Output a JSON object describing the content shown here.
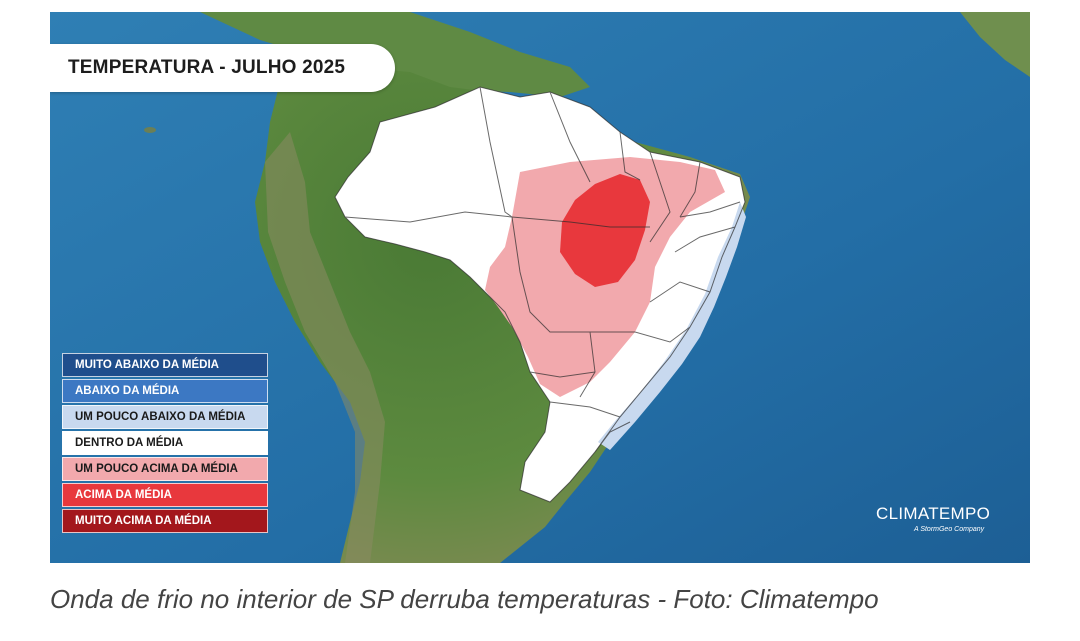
{
  "map": {
    "title": "TEMPERATURA - JULHO 2025",
    "legend": [
      {
        "label": "MUITO ABAIXO DA MÉDIA",
        "color": "#1f4e8c",
        "text_color": "#ffffff"
      },
      {
        "label": "ABAIXO DA MÉDIA",
        "color": "#3c78c3",
        "text_color": "#ffffff"
      },
      {
        "label": "UM POUCO ABAIXO DA MÉDIA",
        "color": "#c8d9ef",
        "text_color": "#1a1a1a"
      },
      {
        "label": "DENTRO DA MÉDIA",
        "color": "#ffffff",
        "text_color": "#1a1a1a"
      },
      {
        "label": "UM POUCO ACIMA DA MÉDIA",
        "color": "#f2a9ad",
        "text_color": "#1a1a1a"
      },
      {
        "label": "ACIMA DA MÉDIA",
        "color": "#e8383d",
        "text_color": "#ffffff"
      },
      {
        "label": "MUITO ACIMA DA MÉDIA",
        "color": "#a3171c",
        "text_color": "#ffffff"
      }
    ],
    "brand": {
      "name": "CLIMATEMPO",
      "tagline": "A StormGeo Company"
    }
  },
  "caption": "Onda de frio no interior de SP derruba temperaturas - Foto: Climatempo"
}
